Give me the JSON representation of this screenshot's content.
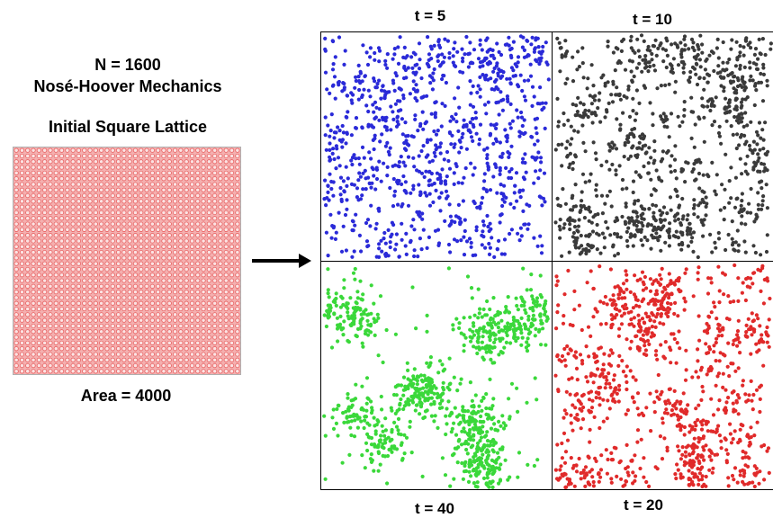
{
  "left": {
    "n_label": "N = 1600",
    "method_label": "Nosé-Hoover Mechanics",
    "lattice_label": "Initial Square Lattice",
    "area_label": "Area = 4000",
    "lattice_color": "#e86060",
    "lattice_bg": "#f4b0b0"
  },
  "panels": [
    {
      "id": "t5",
      "label": "t = 5",
      "color": "#2a2ad8",
      "style": "dispersed"
    },
    {
      "id": "t10",
      "label": "t = 10",
      "color": "#3a3a3a",
      "style": "mild-clusters"
    },
    {
      "id": "t40",
      "label": "t = 40",
      "color": "#3ad83a",
      "style": "strong-clusters"
    },
    {
      "id": "t20",
      "label": "t = 20",
      "color": "#e02a2a",
      "style": "clusters"
    }
  ],
  "arrow": {
    "icon": "right-arrow-icon",
    "color": "#000000"
  }
}
